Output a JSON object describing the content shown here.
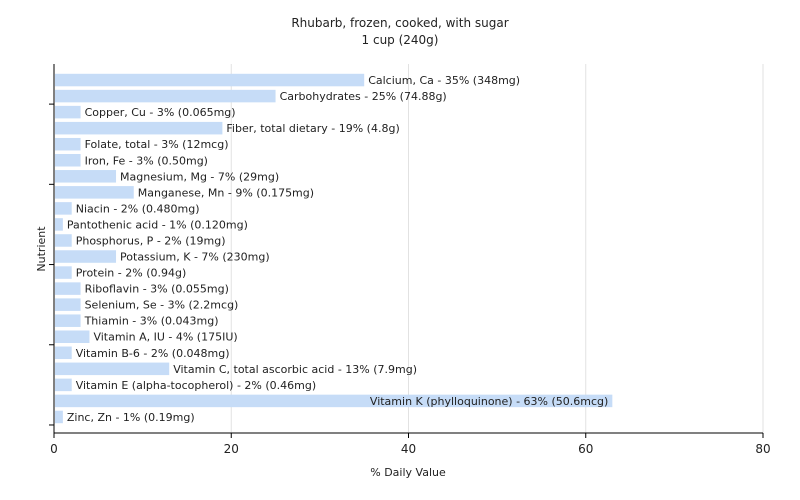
{
  "chart_data": {
    "type": "bar",
    "orientation": "horizontal",
    "title": "Rhubarb, frozen, cooked, with sugar",
    "subtitle": "1 cup (240g)",
    "xlabel": "% Daily Value",
    "ylabel": "Nutrient",
    "xlim": [
      0,
      80
    ],
    "xticks": [
      0,
      20,
      40,
      60,
      80
    ],
    "grid": true,
    "bar_color": "#c6dcf7",
    "categories": [
      "Calcium, Ca - 35% (348mg)",
      "Carbohydrates - 25% (74.88g)",
      "Copper, Cu - 3% (0.065mg)",
      "Fiber, total dietary - 19% (4.8g)",
      "Folate, total - 3% (12mcg)",
      "Iron, Fe - 3% (0.50mg)",
      "Magnesium, Mg - 7% (29mg)",
      "Manganese, Mn - 9% (0.175mg)",
      "Niacin - 2% (0.480mg)",
      "Pantothenic acid - 1% (0.120mg)",
      "Phosphorus, P - 2% (19mg)",
      "Potassium, K - 7% (230mg)",
      "Protein - 2% (0.94g)",
      "Riboflavin - 3% (0.055mg)",
      "Selenium, Se - 3% (2.2mcg)",
      "Thiamin - 3% (0.043mg)",
      "Vitamin A, IU - 4% (175IU)",
      "Vitamin B-6 - 2% (0.048mg)",
      "Vitamin C, total ascorbic acid - 13% (7.9mg)",
      "Vitamin E (alpha-tocopherol) - 2% (0.46mg)",
      "Vitamin K (phylloquinone) - 63% (50.6mcg)",
      "Zinc, Zn - 1% (0.19mg)"
    ],
    "values": [
      35,
      25,
      3,
      19,
      3,
      3,
      7,
      9,
      2,
      1,
      2,
      7,
      2,
      3,
      3,
      3,
      4,
      2,
      13,
      2,
      63,
      1
    ]
  }
}
